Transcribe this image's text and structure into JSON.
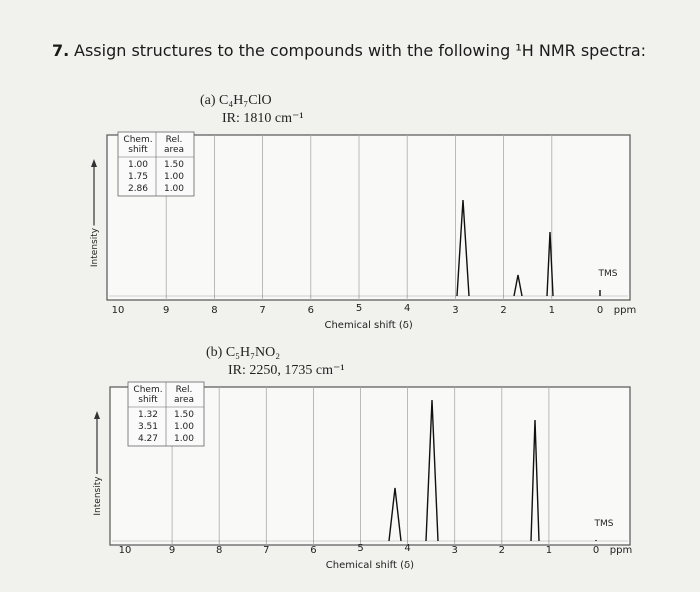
{
  "question": {
    "number": "7.",
    "text": "Assign structures to the compounds with the following ¹H NMR spectra:"
  },
  "spectra": [
    {
      "label": "(a) C₄H₇ClO",
      "ir": "IR: 1810 cm⁻¹",
      "table": {
        "headers": [
          [
            "Chem.",
            "shift"
          ],
          [
            "Rel.",
            "area"
          ]
        ],
        "rows": [
          [
            "1.00",
            "1.50"
          ],
          [
            "1.75",
            "1.00"
          ],
          [
            "2.86",
            "1.00"
          ]
        ]
      },
      "y_axis": "Intensity",
      "x_axis": "Chemical shift (δ)",
      "ticks": [
        "10",
        "9",
        "8",
        "7",
        "6",
        "5",
        "4",
        "3",
        "2",
        "1",
        "0"
      ],
      "unit": "ppm",
      "reference": "TMS"
    },
    {
      "label": "(b) C₅H₇NO₂",
      "ir": "IR: 2250, 1735 cm⁻¹",
      "table": {
        "headers": [
          [
            "Chem.",
            "shift"
          ],
          [
            "Rel.",
            "area"
          ]
        ],
        "rows": [
          [
            "1.32",
            "1.50"
          ],
          [
            "3.51",
            "1.00"
          ],
          [
            "4.27",
            "1.00"
          ]
        ]
      },
      "y_axis": "Intensity",
      "x_axis": "Chemical shift (δ)",
      "ticks": [
        "10",
        "9",
        "8",
        "7",
        "6",
        "5",
        "4",
        "3",
        "2",
        "1",
        "0"
      ],
      "unit": "ppm",
      "reference": "TMS"
    }
  ]
}
